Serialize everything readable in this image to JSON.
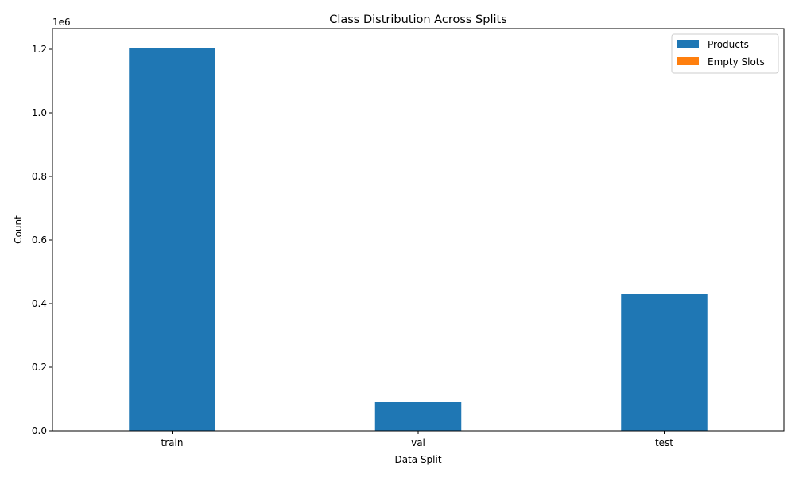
{
  "chart_data": {
    "type": "bar",
    "title": "Class Distribution Across Splits",
    "xlabel": "Data Split",
    "ylabel": "Count",
    "categories": [
      "train",
      "val",
      "test"
    ],
    "series": [
      {
        "name": "Products",
        "values": [
          1205000,
          90000,
          430000
        ],
        "color": "#1f77b4"
      },
      {
        "name": "Empty Slots",
        "values": [
          0,
          0,
          0
        ],
        "color": "#ff7f0e"
      }
    ],
    "ylim": [
      0,
      1265000
    ],
    "yticks": [
      0,
      200000,
      400000,
      600000,
      800000,
      1000000,
      1200000
    ],
    "ytick_labels": [
      "0.0",
      "0.2",
      "0.4",
      "0.6",
      "0.8",
      "1.0",
      "1.2"
    ],
    "y_offset_label": "1e6",
    "legend_position": "top-right",
    "grid": false
  }
}
